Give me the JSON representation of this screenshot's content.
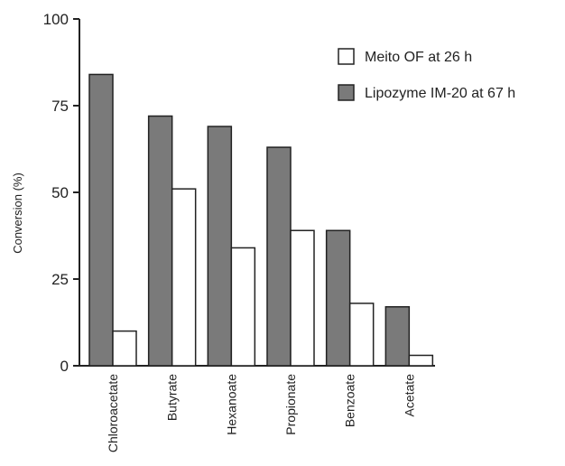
{
  "chart_data": {
    "type": "bar",
    "title": "",
    "xlabel": "",
    "ylabel": "Conversion (%)",
    "ylim": [
      0,
      100
    ],
    "yticks": [
      0,
      25,
      50,
      75,
      100
    ],
    "categories": [
      "Chloroacetate",
      "Butyrate",
      "Hexanoate",
      "Propionate",
      "Benzoate",
      "Acetate"
    ],
    "series": [
      {
        "name": "Lipozyme IM-20 at 67 h",
        "color": "#7a7a7a",
        "values": [
          84,
          72,
          69,
          63,
          39,
          17
        ]
      },
      {
        "name": "Meito OF at 26 h",
        "color": "#ffffff",
        "values": [
          10,
          51,
          34,
          39,
          18,
          3
        ]
      }
    ],
    "legend_placement": "top-right",
    "grid": false
  }
}
